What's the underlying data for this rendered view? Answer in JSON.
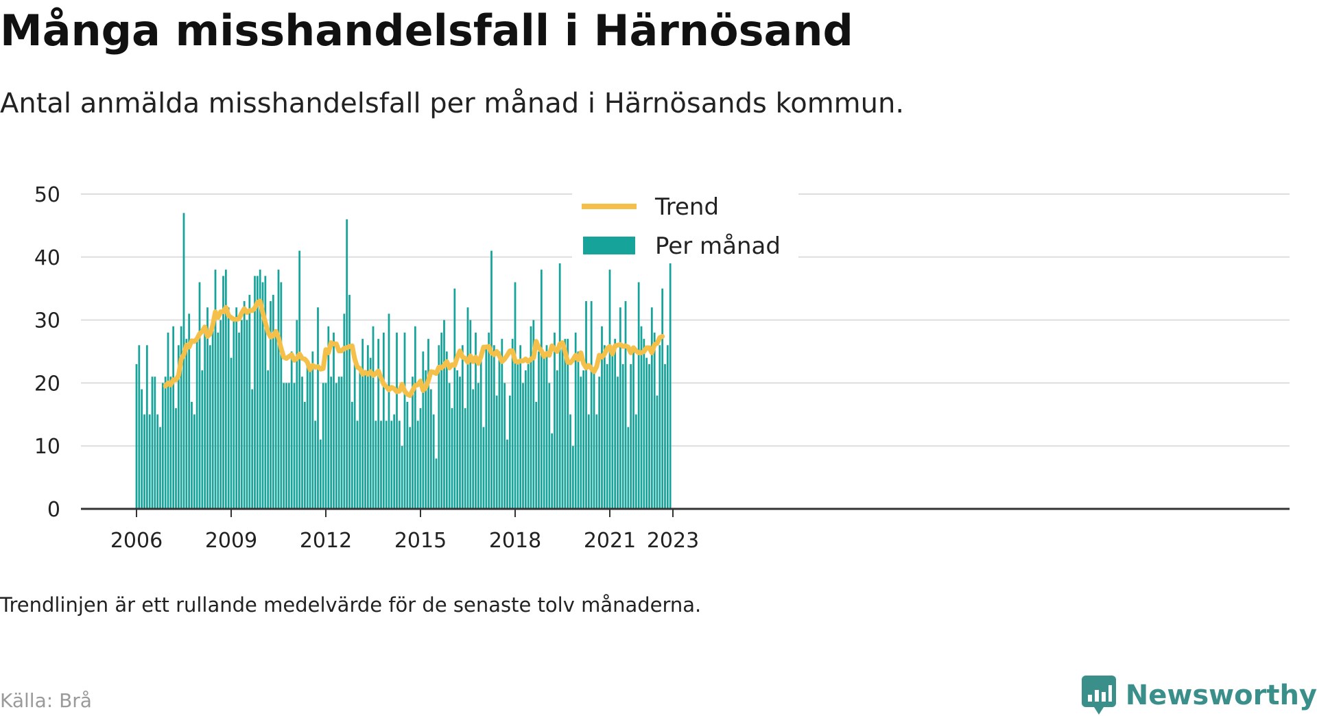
{
  "title": "Många misshandelsfall i Härnösand",
  "subtitle": "Antal anmälda misshandelsfall per månad i Härnösands kommun.",
  "note": "Trendlinjen är ett rullande medelvärde för de senaste tolv månaderna.",
  "source": "Källa: Brå",
  "brand": {
    "name": "Newsworthy",
    "logo_icon": "bar-chart-speech-bubble-icon"
  },
  "colors": {
    "bars": "#16a39a",
    "trend": "#f5c04a",
    "grid": "#dddddd",
    "axis": "#333333",
    "brand": "#3a8f8a"
  },
  "chart_data": {
    "type": "bar",
    "x_axis": {
      "unit": "month",
      "start": "2006-01",
      "ticks": [
        "2006",
        "2009",
        "2012",
        "2015",
        "2018",
        "2021",
        "2023"
      ]
    },
    "y_axis": {
      "ylim": [
        0,
        50
      ],
      "ticks": [
        0,
        10,
        20,
        30,
        40,
        50
      ]
    },
    "grid": true,
    "legend": {
      "placement": "top-center"
    },
    "series": [
      {
        "name": "Per månad",
        "type": "bar",
        "values": [
          23,
          26,
          19,
          15,
          26,
          15,
          21,
          21,
          15,
          13,
          20,
          21,
          28,
          21,
          29,
          16,
          26,
          29,
          47,
          27,
          31,
          17,
          15,
          27,
          36,
          22,
          28,
          32,
          26,
          30,
          38,
          28,
          30,
          37,
          38,
          32,
          24,
          30,
          32,
          28,
          30,
          33,
          30,
          34,
          19,
          37,
          37,
          38,
          36,
          37,
          22,
          33,
          34,
          28,
          38,
          36,
          20,
          20,
          20,
          25,
          20,
          30,
          41,
          21,
          17,
          23,
          23,
          25,
          14,
          32,
          11,
          20,
          20,
          29,
          21,
          28,
          20,
          21,
          21,
          31,
          46,
          34,
          17,
          23,
          14,
          22,
          27,
          22,
          26,
          24,
          29,
          14,
          27,
          14,
          28,
          14,
          31,
          14,
          15,
          28,
          14,
          10,
          28,
          17,
          13,
          21,
          29,
          14,
          16,
          25,
          22,
          27,
          19,
          15,
          8,
          26,
          28,
          30,
          25,
          20,
          16,
          35,
          22,
          21,
          26,
          16,
          32,
          30,
          19,
          28,
          20,
          25,
          13,
          26,
          28,
          41,
          26,
          18,
          25,
          27,
          20,
          11,
          18,
          27,
          36,
          23,
          26,
          20,
          22,
          23,
          29,
          30,
          17,
          25,
          38,
          24,
          26,
          20,
          12,
          28,
          22,
          39,
          26,
          27,
          27,
          15,
          10,
          28,
          25,
          21,
          22,
          33,
          15,
          33,
          22,
          15,
          21,
          29,
          26,
          23,
          38,
          25,
          27,
          21,
          32,
          23,
          33,
          13,
          23,
          25,
          15,
          36,
          29,
          27,
          24,
          23,
          32,
          28,
          18,
          26,
          35,
          23,
          26,
          41
        ]
      },
      {
        "name": "Trend",
        "type": "line",
        "start": "2006-12",
        "values": [
          19.5,
          20,
          19.7,
          20.5,
          20.5,
          21.2,
          23.8,
          24.5,
          26,
          25.7,
          26.7,
          26.6,
          27,
          27.8,
          28.2,
          28.9,
          27.4,
          27.8,
          29.2,
          31.3,
          30.4,
          31.3,
          31.3,
          32,
          30.7,
          30.4,
          30.1,
          30.1,
          30.2,
          31.1,
          31.8,
          31.2,
          31.5,
          31.5,
          31.9,
          32.8,
          33,
          31.2,
          29.6,
          28.1,
          27.3,
          27.5,
          28.2,
          27.2,
          25.5,
          24.1,
          23.9,
          24.2,
          24.5,
          23.6,
          23.9,
          24.6,
          23.9,
          23.8,
          23.3,
          22.1,
          22.8,
          22.5,
          22.6,
          22.2,
          22.3,
          25.3,
          24.8,
          26.4,
          26.2,
          26.2,
          25.1,
          25.1,
          25.5,
          25.6,
          25.8,
          25.9,
          23.8,
          22.5,
          22.3,
          21.4,
          21.7,
          21.4,
          21.8,
          21.2,
          21.5,
          21.9,
          20.8,
          19.8,
          19.4,
          18.9,
          19.3,
          19.1,
          18.6,
          18.7,
          19.8,
          18.7,
          18.2,
          18,
          18.8,
          19.6,
          19.7,
          20.3,
          18.8,
          19.3,
          20.4,
          21.8,
          21.7,
          21.5,
          22.5,
          22.4,
          22.8,
          23.4,
          22.4,
          22.9,
          22.8,
          24.1,
          25.1,
          24.1,
          23.9,
          23.3,
          24.3,
          23.4,
          24.1,
          23.1,
          24.2,
          25.7,
          25.7,
          25.8,
          24.8,
          24.5,
          25,
          24.3,
          23.4,
          23.8,
          24.4,
          25.1,
          25.1,
          23.5,
          23.3,
          23.5,
          23.5,
          23.8,
          23.4,
          23.8,
          24,
          26.6,
          25.6,
          25.1,
          24.2,
          24.7,
          24.4,
          25.9,
          25.4,
          25,
          26.2,
          26.4,
          25,
          23.3,
          23.2,
          23.7,
          24.4,
          23.7,
          24.8,
          23.1,
          22.4,
          22.8,
          22.3,
          21.8,
          22.6,
          24.4,
          24.1,
          24.6,
          25.5,
          25.8,
          24.6,
          25.9,
          26,
          26.1,
          25.8,
          25.9,
          25.7,
          24.8,
          25.6,
          25.1,
          24.8,
          24.8,
          25,
          25.6,
          25.6,
          24.8,
          26.1,
          26.3,
          27.2,
          27.4
        ]
      }
    ]
  }
}
